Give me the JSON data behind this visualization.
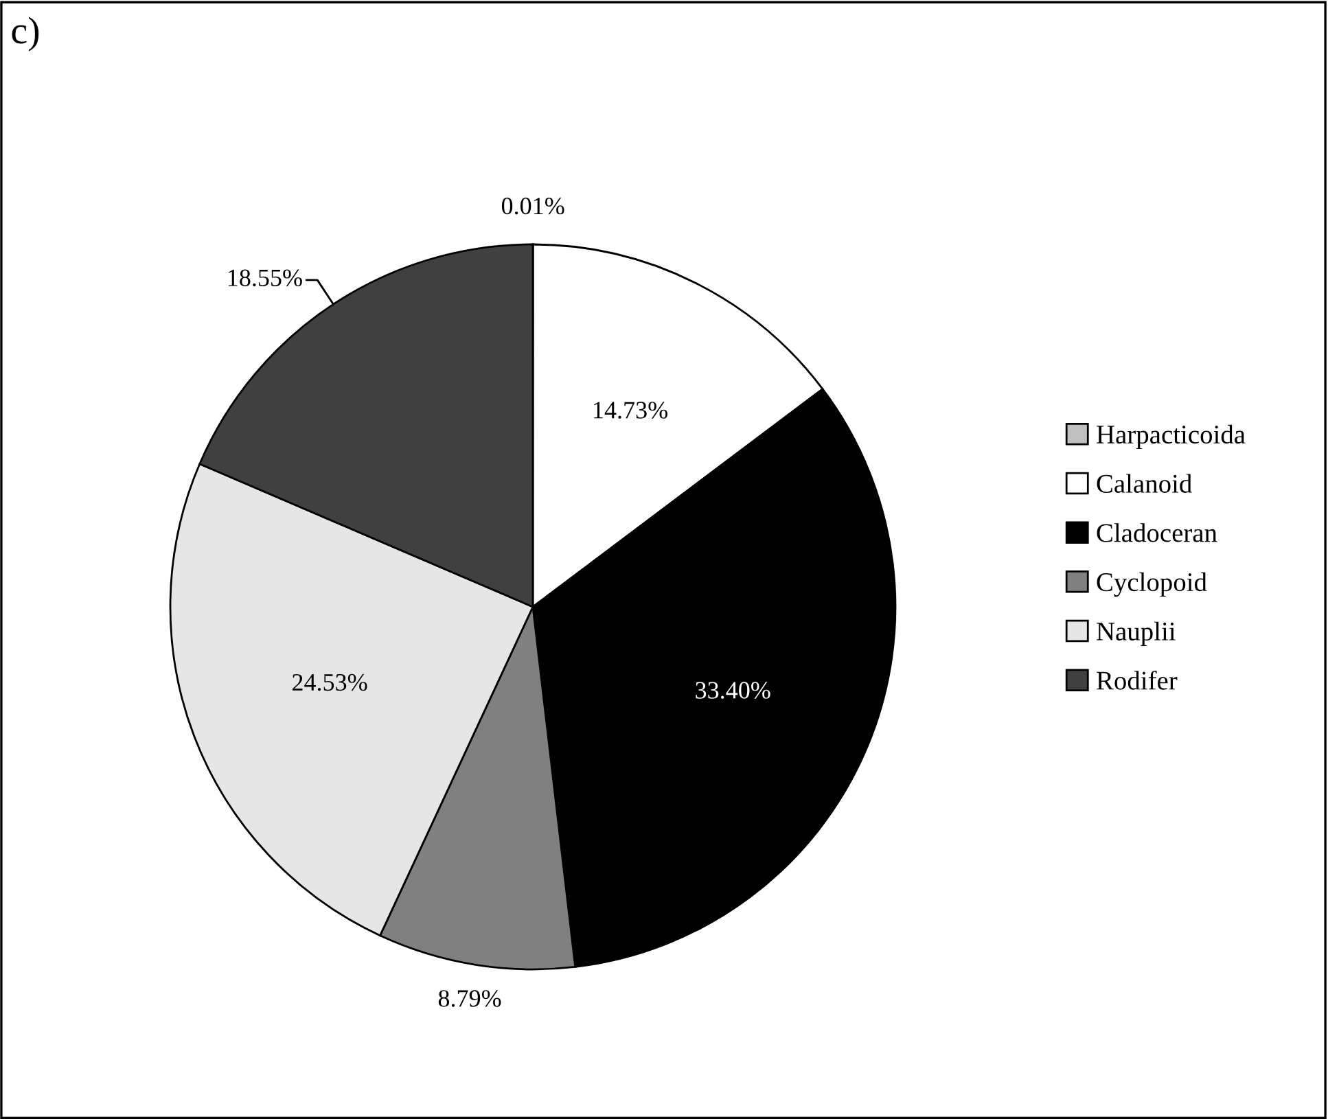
{
  "chart_data": {
    "type": "pie",
    "title": "c)",
    "categories": [
      "Harpacticoida",
      "Calanoid",
      "Cladoceran",
      "Cyclopoid",
      "Nauplii",
      "Rodifer"
    ],
    "values": [
      0.01,
      14.73,
      33.4,
      8.79,
      24.53,
      18.55
    ],
    "value_labels": [
      "0.01%",
      "14.73%",
      "33.40%",
      "8.79%",
      "24.53%",
      "18.55%"
    ],
    "colors": [
      "#c0c0c0",
      "#ffffff",
      "#000000",
      "#808080",
      "#e6e6e6",
      "#404040"
    ],
    "legend": "right"
  }
}
